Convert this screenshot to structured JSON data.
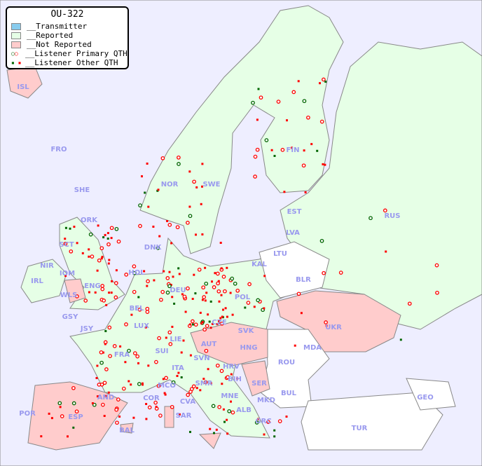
{
  "legend": {
    "title": "OU-322",
    "items": [
      {
        "label": "__Transmitter",
        "color": "#88ccee"
      },
      {
        "label": "__Reported",
        "color": "#e6ffe6"
      },
      {
        "label": "__Not Reported",
        "color": "#ffcccc"
      },
      {
        "label": "__Listener Primary QTH",
        "marker": "ring"
      },
      {
        "label": "__Listener Other QTH",
        "marker": "square"
      }
    ]
  },
  "colors": {
    "sea": "#eeeeff",
    "reported": "#e6ffe6",
    "not_reported": "#ffcccc",
    "no_data": "#ffffff",
    "label": "#9999ee",
    "listener_red": "#ff0000",
    "listener_green": "#006600",
    "border": "#888888"
  },
  "countries": [
    {
      "code": "ISL",
      "status": "not_reported"
    },
    {
      "code": "FRO",
      "status": "reported"
    },
    {
      "code": "SHE",
      "status": "reported"
    },
    {
      "code": "ORK",
      "status": "reported"
    },
    {
      "code": "SCT",
      "status": "reported"
    },
    {
      "code": "NIR",
      "status": "reported"
    },
    {
      "code": "IRL",
      "status": "reported"
    },
    {
      "code": "IOM",
      "status": "reported"
    },
    {
      "code": "WLS",
      "status": "not_reported"
    },
    {
      "code": "ENG",
      "status": "reported"
    },
    {
      "code": "NOR",
      "status": "reported"
    },
    {
      "code": "SWE",
      "status": "reported"
    },
    {
      "code": "FIN",
      "status": "reported"
    },
    {
      "code": "EST",
      "status": "reported"
    },
    {
      "code": "LVA",
      "status": "reported"
    },
    {
      "code": "LTU",
      "status": "none"
    },
    {
      "code": "KAL",
      "status": "none"
    },
    {
      "code": "BLR",
      "status": "none"
    },
    {
      "code": "RUS",
      "status": "reported"
    },
    {
      "code": "DNK",
      "status": "reported"
    },
    {
      "code": "HOL",
      "status": "reported"
    },
    {
      "code": "DEU",
      "status": "reported"
    },
    {
      "code": "POL",
      "status": "reported"
    },
    {
      "code": "BEL",
      "status": "reported"
    },
    {
      "code": "LUX",
      "status": "reported"
    },
    {
      "code": "GSY",
      "status": "reported"
    },
    {
      "code": "JSY",
      "status": "reported"
    },
    {
      "code": "FRA",
      "status": "reported"
    },
    {
      "code": "SUI",
      "status": "not_reported"
    },
    {
      "code": "LIE",
      "status": "reported"
    },
    {
      "code": "AUT",
      "status": "not_reported"
    },
    {
      "code": "CZE",
      "status": "reported"
    },
    {
      "code": "SVK",
      "status": "not_reported"
    },
    {
      "code": "HNG",
      "status": "not_reported"
    },
    {
      "code": "SVN",
      "status": "reported"
    },
    {
      "code": "HRV",
      "status": "reported"
    },
    {
      "code": "BIH",
      "status": "reported"
    },
    {
      "code": "SER",
      "status": "not_reported"
    },
    {
      "code": "ROU",
      "status": "none"
    },
    {
      "code": "MDA",
      "status": "none"
    },
    {
      "code": "UKR",
      "status": "not_reported"
    },
    {
      "code": "BUL",
      "status": "none"
    },
    {
      "code": "MNE",
      "status": "reported"
    },
    {
      "code": "ALB",
      "status": "reported"
    },
    {
      "code": "MKD",
      "status": "reported"
    },
    {
      "code": "GRC",
      "status": "reported"
    },
    {
      "code": "TUR",
      "status": "none"
    },
    {
      "code": "GEO",
      "status": "none"
    },
    {
      "code": "ITA",
      "status": "reported"
    },
    {
      "code": "MCO",
      "status": "reported"
    },
    {
      "code": "COR",
      "status": "reported"
    },
    {
      "code": "SMR",
      "status": "reported"
    },
    {
      "code": "CVA",
      "status": "reported"
    },
    {
      "code": "SAR",
      "status": "not_reported"
    },
    {
      "code": "AND",
      "status": "reported"
    },
    {
      "code": "ESP",
      "status": "not_reported"
    },
    {
      "code": "POR",
      "status": "not_reported"
    },
    {
      "code": "BAL",
      "status": "not_reported"
    }
  ]
}
